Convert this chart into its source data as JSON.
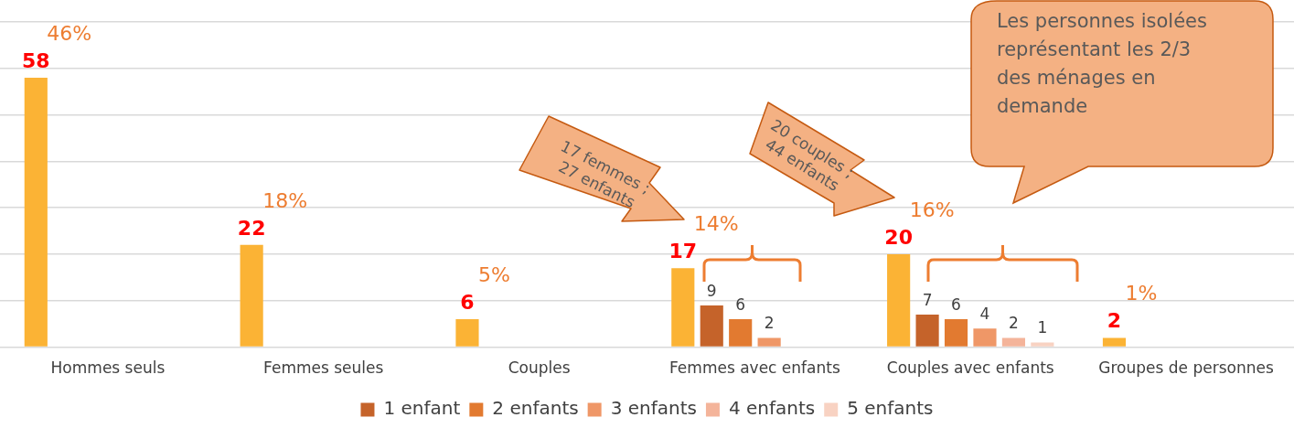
{
  "chart_data": {
    "type": "bar",
    "categories": [
      "Hommes seuls",
      "Femmes seules",
      "Couples",
      "Femmes avec enfants",
      "Couples avec enfants",
      "Groupes de personnes"
    ],
    "series": [
      {
        "color": "#fbb335",
        "values": [
          58,
          22,
          6,
          17,
          20,
          2
        ]
      },
      {
        "name": "1 enfant",
        "color": "#c5632a",
        "values": [
          null,
          null,
          null,
          9,
          7,
          null
        ]
      },
      {
        "name": "2 enfants",
        "color": "#e27a30",
        "values": [
          null,
          null,
          null,
          6,
          6,
          null
        ]
      },
      {
        "name": "3 enfants",
        "color": "#ef9767",
        "values": [
          null,
          null,
          null,
          2,
          4,
          null
        ]
      },
      {
        "name": "4 enfants",
        "color": "#f4b49a",
        "values": [
          null,
          null,
          null,
          null,
          2,
          null
        ]
      },
      {
        "name": "5 enfants",
        "color": "#f8d2c2",
        "values": [
          null,
          null,
          null,
          null,
          1,
          null
        ]
      }
    ],
    "ylim": [
      0,
      70
    ],
    "yticks": [
      {
        "value": 0,
        "label": null
      },
      {
        "value": 10,
        "label": null
      },
      {
        "value": 20,
        "label": null
      },
      {
        "value": 30,
        "label": null
      },
      {
        "value": 40,
        "label": null
      },
      {
        "value": 50,
        "label": null
      },
      {
        "value": 60,
        "label": null
      },
      {
        "value": 70,
        "label": null
      }
    ],
    "tick_labels": "x",
    "grid": "y",
    "legend": "bottom",
    "data_labels": true,
    "annotations": [
      "46%",
      "18%",
      "5%",
      "14%",
      "16%",
      "1%",
      "17 femmes ;\n27 enfants",
      "20 couples ;\n44 enfants",
      "Les personnes isolées\nreprésentant les 2/3\ndes ménages en\ndemande"
    ]
  }
}
